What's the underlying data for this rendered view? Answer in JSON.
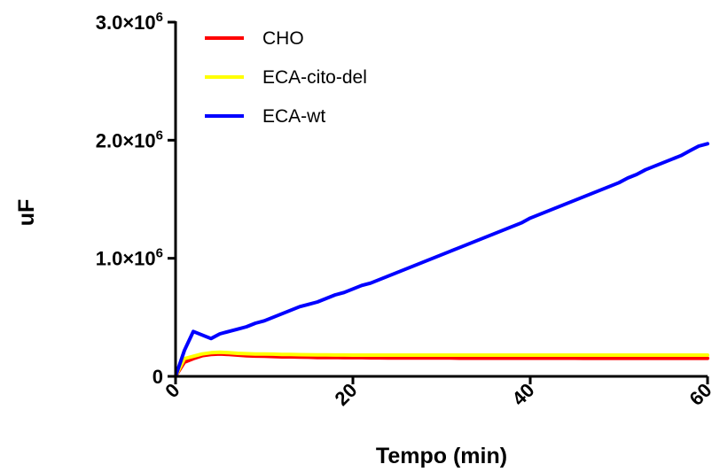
{
  "chart_data": {
    "type": "line",
    "xlabel": "Tempo (min)",
    "ylabel": "uF",
    "xlim": [
      0,
      60
    ],
    "ylim": [
      0,
      3000000
    ],
    "x_ticks": [
      "0",
      "20",
      "40",
      "60"
    ],
    "y_ticks": [
      {
        "mantissa": "0",
        "exp": ""
      },
      {
        "mantissa": "1.0×10",
        "exp": "6"
      },
      {
        "mantissa": "2.0×10",
        "exp": "6"
      },
      {
        "mantissa": "3.0×10",
        "exp": "6"
      }
    ],
    "grid": false,
    "legend_position": "top-left",
    "x": [
      0,
      1,
      2,
      3,
      4,
      5,
      6,
      7,
      8,
      9,
      10,
      11,
      12,
      13,
      14,
      15,
      16,
      17,
      18,
      19,
      20,
      21,
      22,
      23,
      24,
      25,
      26,
      27,
      28,
      29,
      30,
      31,
      32,
      33,
      34,
      35,
      36,
      37,
      38,
      39,
      40,
      41,
      42,
      43,
      44,
      45,
      46,
      47,
      48,
      49,
      50,
      51,
      52,
      53,
      54,
      55,
      56,
      57,
      58,
      59,
      60
    ],
    "series": [
      {
        "name": "CHO",
        "color": "#ff0000",
        "values": [
          0,
          120000,
          150000,
          175000,
          185000,
          190000,
          185000,
          180000,
          175000,
          172000,
          170000,
          168000,
          165000,
          165000,
          163000,
          162000,
          160000,
          160000,
          160000,
          158000,
          158000,
          158000,
          157000,
          157000,
          156000,
          156000,
          156000,
          155000,
          155000,
          155000,
          155000,
          155000,
          154000,
          154000,
          154000,
          154000,
          154000,
          154000,
          154000,
          154000,
          154000,
          154000,
          154000,
          154000,
          154000,
          154000,
          153000,
          153000,
          153000,
          153000,
          153000,
          153000,
          153000,
          153000,
          153000,
          153000,
          153000,
          153000,
          153000,
          153000,
          153000
        ]
      },
      {
        "name": "ECA-cito-del",
        "color": "#ffff00",
        "values": [
          0,
          150000,
          170000,
          190000,
          200000,
          205000,
          200000,
          195000,
          192000,
          190000,
          190000,
          188000,
          186000,
          185000,
          184000,
          183000,
          182000,
          182000,
          181000,
          181000,
          180000,
          180000,
          180000,
          180000,
          180000,
          180000,
          180000,
          180000,
          180000,
          180000,
          180000,
          180000,
          180000,
          180000,
          180000,
          180000,
          180000,
          180000,
          180000,
          180000,
          180000,
          180000,
          180000,
          180000,
          180000,
          180000,
          180000,
          180000,
          180000,
          180000,
          180000,
          180000,
          180000,
          180000,
          180000,
          180000,
          180000,
          180000,
          180000,
          180000,
          180000
        ]
      },
      {
        "name": "ECA-wt",
        "color": "#0000ff",
        "values": [
          0,
          220000,
          380000,
          350000,
          320000,
          360000,
          380000,
          400000,
          420000,
          450000,
          470000,
          500000,
          530000,
          560000,
          590000,
          610000,
          630000,
          660000,
          690000,
          710000,
          740000,
          770000,
          790000,
          820000,
          850000,
          880000,
          910000,
          940000,
          970000,
          1000000,
          1030000,
          1060000,
          1090000,
          1120000,
          1150000,
          1180000,
          1210000,
          1240000,
          1270000,
          1300000,
          1340000,
          1370000,
          1400000,
          1430000,
          1460000,
          1490000,
          1520000,
          1550000,
          1580000,
          1610000,
          1640000,
          1680000,
          1710000,
          1750000,
          1780000,
          1810000,
          1840000,
          1870000,
          1910000,
          1950000,
          1970000
        ]
      }
    ]
  }
}
